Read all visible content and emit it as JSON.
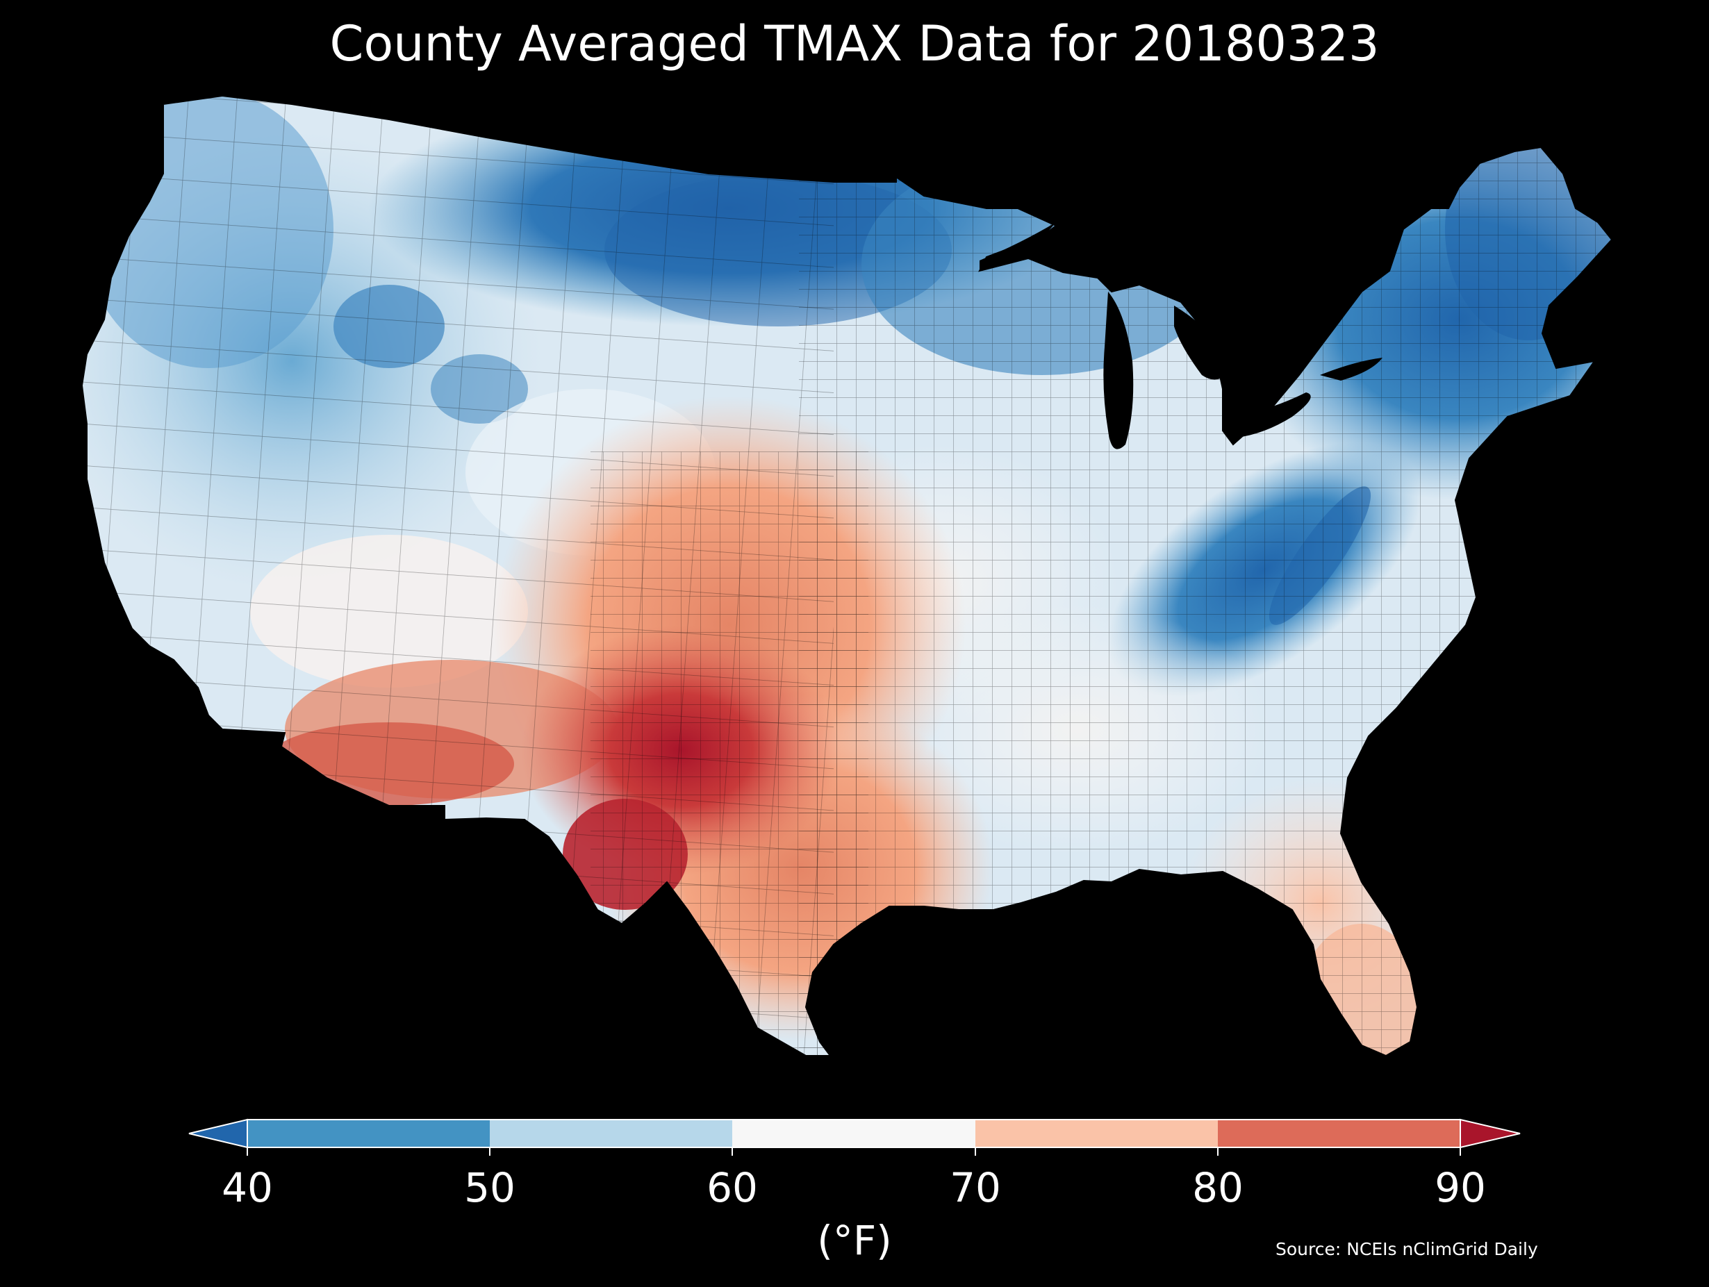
{
  "title": "County Averaged TMAX Data for 20180323",
  "colorbar": {
    "ticks": [
      "40",
      "50",
      "60",
      "70",
      "80",
      "90"
    ],
    "unit": "(°F)",
    "bins": [
      {
        "range": "<40",
        "color": "#2166ac"
      },
      {
        "range": "40-50",
        "color": "#4393c3"
      },
      {
        "range": "50-60",
        "color": "#b6d7ea"
      },
      {
        "range": "60-70",
        "color": "#f7f7f7"
      },
      {
        "range": "70-80",
        "color": "#fac3a8"
      },
      {
        "range": "80-90",
        "color": "#dd6b59"
      },
      {
        "range": ">90",
        "color": "#a9152b"
      }
    ]
  },
  "source": "Source: NCEIs nClimGrid Daily",
  "map": {
    "region": "Contiguous United States",
    "value_field": "TMAX",
    "date": "20180323"
  }
}
